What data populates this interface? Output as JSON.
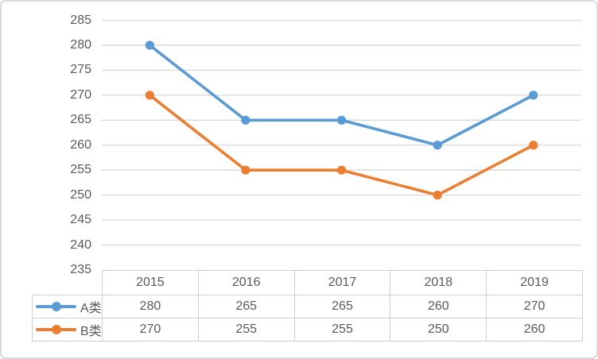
{
  "chart_data": {
    "type": "line",
    "title": "",
    "xlabel": "",
    "ylabel": "",
    "categories": [
      "2015",
      "2016",
      "2017",
      "2018",
      "2019"
    ],
    "series": [
      {
        "name": "A类",
        "values": [
          280,
          265,
          265,
          260,
          270
        ],
        "color": "#5B9BD5"
      },
      {
        "name": "B类",
        "values": [
          270,
          255,
          255,
          250,
          260
        ],
        "color": "#ED7D31"
      }
    ],
    "y_ticks": [
      285,
      280,
      275,
      270,
      265,
      260,
      255,
      250,
      245,
      240,
      235
    ],
    "ylim": [
      235,
      285
    ],
    "grid": "horizontal",
    "legend_position": "data-table-left-keys",
    "data_table_shown": true
  },
  "colors": {
    "gridline": "#D9D9D9",
    "text": "#595959",
    "table_border": "#CFCFCF",
    "frame_border": "#D9D9D9",
    "background": "#FFFFFF"
  }
}
